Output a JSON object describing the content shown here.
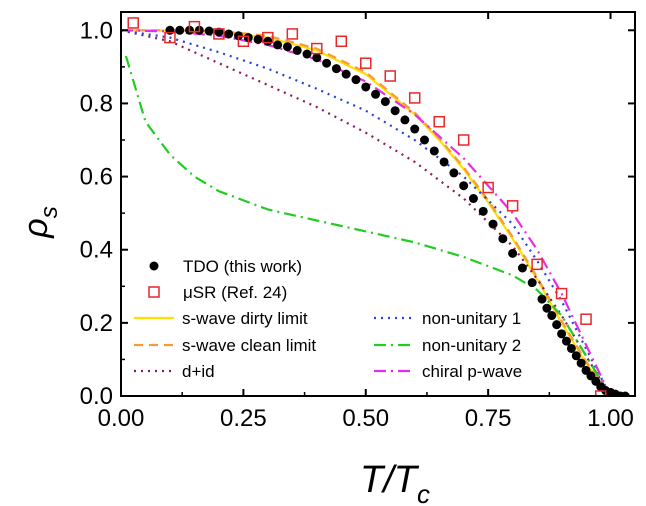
{
  "chart_data": {
    "type": "scatter",
    "xlabel": {
      "main": "T/T",
      "sub": "c"
    },
    "ylabel": {
      "main": "ρ",
      "sub": "s"
    },
    "xlim": [
      0.0,
      1.05
    ],
    "ylim": [
      0.0,
      1.05
    ],
    "x_ticks": [
      0.0,
      0.25,
      0.5,
      0.75,
      1.0
    ],
    "x_tick_labels": [
      "0.00",
      "0.25",
      "0.50",
      "0.75",
      "1.00"
    ],
    "y_ticks": [
      0.0,
      0.2,
      0.4,
      0.6,
      0.8,
      1.0
    ],
    "y_tick_labels": [
      "0.0",
      "0.2",
      "0.4",
      "0.6",
      "0.8",
      "1.0"
    ],
    "grid": false,
    "legend_position": "bottom-left",
    "series": [
      {
        "name": "TDO (this work)",
        "kind": "points",
        "marker": "filled-circle",
        "color": "#000000",
        "x": [
          0.1,
          0.12,
          0.14,
          0.16,
          0.18,
          0.2,
          0.22,
          0.24,
          0.26,
          0.28,
          0.3,
          0.32,
          0.34,
          0.36,
          0.38,
          0.4,
          0.42,
          0.44,
          0.46,
          0.48,
          0.5,
          0.52,
          0.54,
          0.56,
          0.58,
          0.6,
          0.62,
          0.64,
          0.66,
          0.68,
          0.7,
          0.72,
          0.74,
          0.76,
          0.78,
          0.8,
          0.82,
          0.84,
          0.86,
          0.87,
          0.88,
          0.89,
          0.9,
          0.91,
          0.92,
          0.93,
          0.94,
          0.95,
          0.96,
          0.97,
          0.98,
          0.99,
          1.0,
          1.01,
          1.02,
          1.03
        ],
        "y": [
          1.0,
          1.0,
          1.0,
          1.0,
          0.998,
          0.995,
          0.99,
          0.985,
          0.98,
          0.975,
          0.97,
          0.96,
          0.955,
          0.945,
          0.935,
          0.925,
          0.91,
          0.895,
          0.88,
          0.865,
          0.845,
          0.825,
          0.805,
          0.78,
          0.755,
          0.73,
          0.7,
          0.67,
          0.64,
          0.61,
          0.575,
          0.54,
          0.505,
          0.47,
          0.43,
          0.39,
          0.35,
          0.31,
          0.265,
          0.24,
          0.22,
          0.195,
          0.17,
          0.15,
          0.13,
          0.11,
          0.09,
          0.07,
          0.055,
          0.04,
          0.025,
          0.015,
          0.01,
          0.005,
          0.0,
          0.0
        ]
      },
      {
        "name": "μSR (Ref. 24)",
        "kind": "points",
        "marker": "open-square",
        "color": "#e8272a",
        "x": [
          0.025,
          0.1,
          0.15,
          0.2,
          0.25,
          0.3,
          0.35,
          0.4,
          0.45,
          0.5,
          0.55,
          0.6,
          0.65,
          0.7,
          0.75,
          0.8,
          0.85,
          0.9,
          0.95,
          0.98
        ],
        "y": [
          1.02,
          0.98,
          1.01,
          0.99,
          0.97,
          0.98,
          0.99,
          0.95,
          0.97,
          0.91,
          0.875,
          0.815,
          0.75,
          0.7,
          0.57,
          0.52,
          0.36,
          0.28,
          0.21,
          0.0
        ]
      },
      {
        "name": "s-wave dirty limit",
        "kind": "line",
        "style": "solid",
        "color": "#ffe000",
        "x": [
          0.0,
          0.1,
          0.2,
          0.3,
          0.4,
          0.5,
          0.6,
          0.65,
          0.7,
          0.75,
          0.8,
          0.85,
          0.9,
          0.95,
          1.0
        ],
        "y": [
          1.0,
          1.0,
          0.995,
          0.98,
          0.945,
          0.88,
          0.77,
          0.7,
          0.62,
          0.53,
          0.43,
          0.32,
          0.2,
          0.09,
          0.0
        ]
      },
      {
        "name": "s-wave clean limit",
        "kind": "line",
        "style": "dashed",
        "color": "#f79a3c",
        "x": [
          0.0,
          0.1,
          0.2,
          0.3,
          0.4,
          0.5,
          0.6,
          0.65,
          0.7,
          0.75,
          0.8,
          0.85,
          0.9,
          0.95,
          1.0
        ],
        "y": [
          1.0,
          1.0,
          0.998,
          0.985,
          0.95,
          0.885,
          0.775,
          0.705,
          0.625,
          0.535,
          0.435,
          0.325,
          0.205,
          0.095,
          0.0
        ]
      },
      {
        "name": "d+id",
        "kind": "line",
        "style": "dotted",
        "color": "#8b1a5a",
        "x": [
          0.0,
          0.1,
          0.2,
          0.3,
          0.4,
          0.5,
          0.6,
          0.7,
          0.8,
          0.85,
          0.9,
          0.95,
          1.0
        ],
        "y": [
          1.0,
          0.97,
          0.91,
          0.85,
          0.79,
          0.72,
          0.64,
          0.54,
          0.41,
          0.32,
          0.22,
          0.11,
          0.0
        ]
      },
      {
        "name": "non-unitary 1",
        "kind": "line",
        "style": "dotted",
        "color": "#2045d8",
        "x": [
          0.0,
          0.1,
          0.2,
          0.3,
          0.4,
          0.5,
          0.6,
          0.7,
          0.8,
          0.85,
          0.9,
          0.95,
          1.0
        ],
        "y": [
          1.0,
          0.98,
          0.94,
          0.895,
          0.84,
          0.78,
          0.7,
          0.6,
          0.47,
          0.37,
          0.26,
          0.13,
          0.0
        ]
      },
      {
        "name": "non-unitary 2",
        "kind": "line",
        "style": "dash-dot",
        "color": "#22cc22",
        "x": [
          0.01,
          0.05,
          0.1,
          0.15,
          0.2,
          0.3,
          0.4,
          0.5,
          0.6,
          0.7,
          0.8,
          0.85,
          0.9,
          0.95,
          1.0
        ],
        "y": [
          0.93,
          0.75,
          0.66,
          0.6,
          0.56,
          0.51,
          0.48,
          0.45,
          0.42,
          0.38,
          0.33,
          0.29,
          0.22,
          0.11,
          0.0
        ]
      },
      {
        "name": "chiral p-wave",
        "kind": "line",
        "style": "dash-dot",
        "color": "#e62ee6",
        "x": [
          0.0,
          0.1,
          0.2,
          0.3,
          0.4,
          0.5,
          0.6,
          0.7,
          0.8,
          0.85,
          0.9,
          0.95,
          1.0
        ],
        "y": [
          1.0,
          0.997,
          0.985,
          0.96,
          0.92,
          0.86,
          0.77,
          0.65,
          0.5,
          0.4,
          0.28,
          0.14,
          0.0
        ]
      }
    ],
    "legend": [
      {
        "label": "TDO (this work)",
        "series": 0
      },
      {
        "label": "μSR (Ref. 24)",
        "series": 1
      },
      {
        "label": "s-wave dirty limit",
        "series": 2
      },
      {
        "label": "s-wave clean limit",
        "series": 3
      },
      {
        "label": "d+id",
        "series": 4
      },
      {
        "label": "non-unitary 1",
        "series": 5
      },
      {
        "label": "non-unitary 2",
        "series": 6
      },
      {
        "label": "chiral p-wave",
        "series": 7
      }
    ]
  }
}
